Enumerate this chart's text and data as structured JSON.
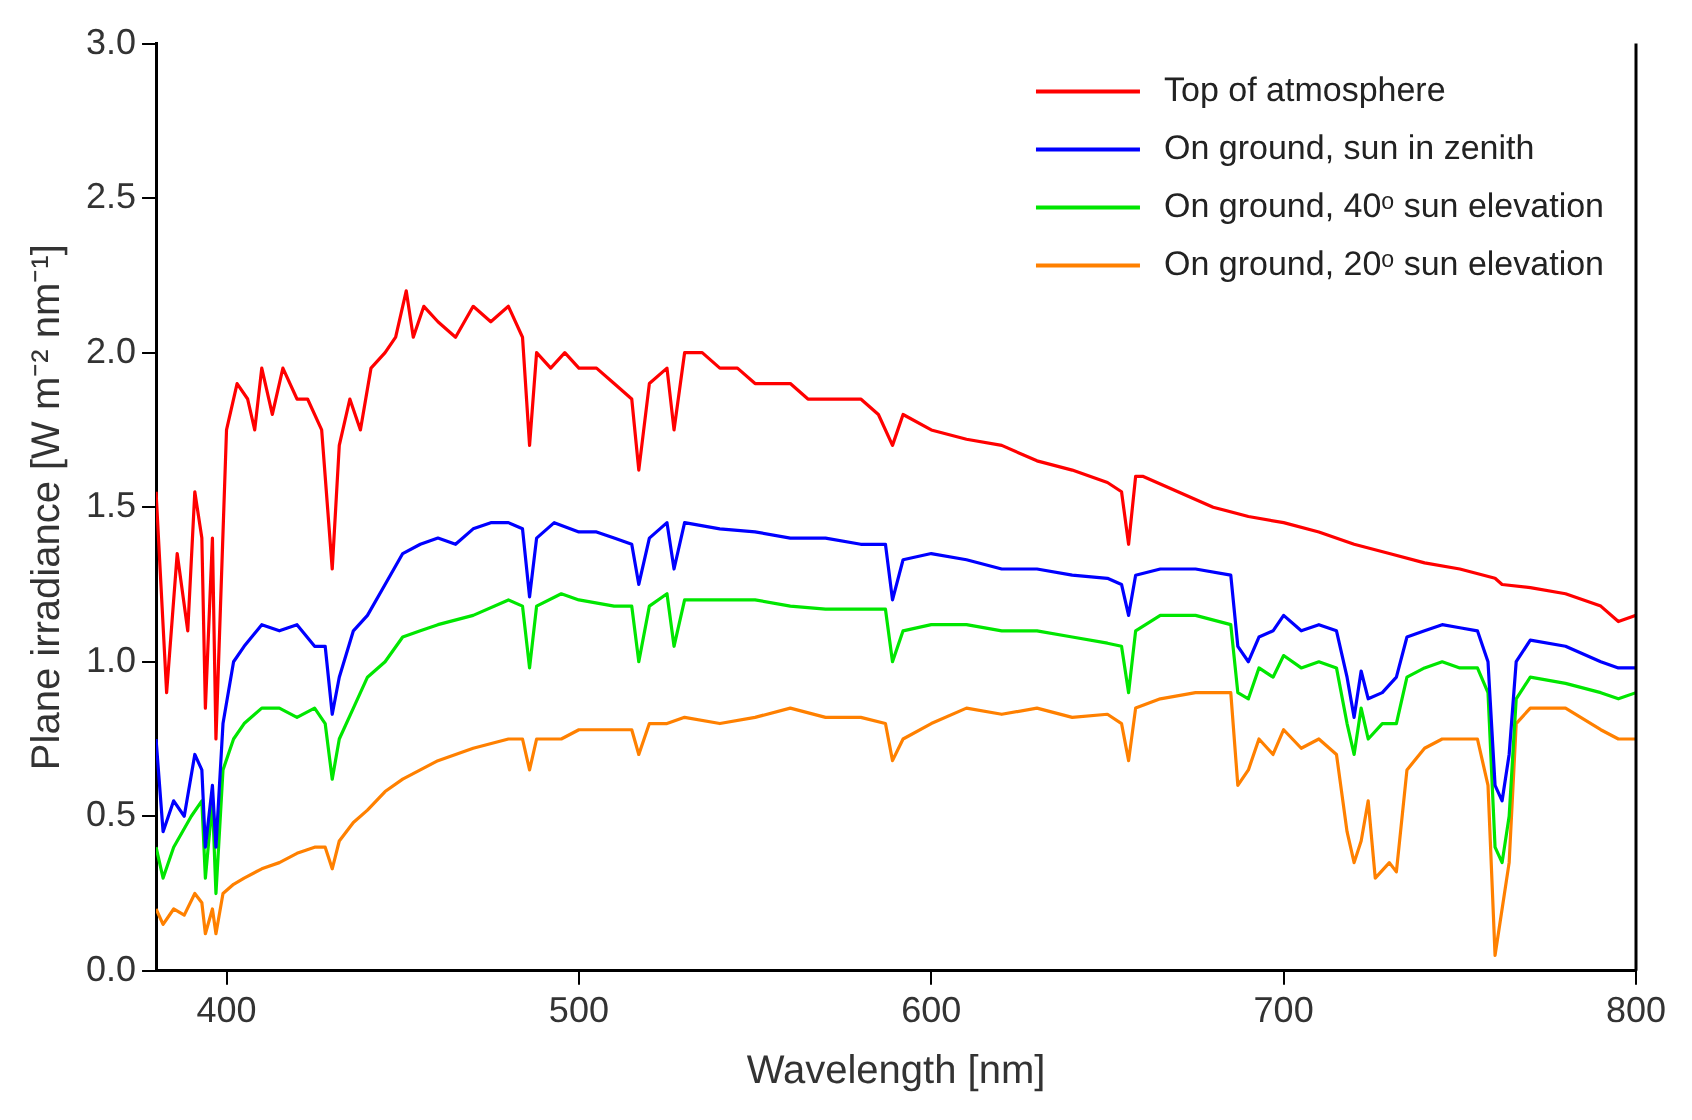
{
  "chart_data": {
    "type": "line",
    "xlabel": "Wavelength [nm]",
    "ylabel": "Plane irradiance [W m⁻² nm⁻¹]",
    "xlim": [
      380,
      800
    ],
    "xticks": [
      400,
      500,
      600,
      700,
      800
    ],
    "ylim": [
      0,
      3
    ],
    "yticks": [
      {
        "value": 0,
        "label": "0.0"
      },
      0.5,
      {
        "value": 1,
        "label": "1.0"
      },
      1.5,
      {
        "value": 2,
        "label": "2.0"
      },
      2.5,
      {
        "value": 3,
        "label": "3.0"
      }
    ],
    "grid": false,
    "legend": "top right",
    "marker": "none",
    "line_style": "solid",
    "series": [
      {
        "name": "Top of atmosphere",
        "color": "#ff0000",
        "x": [
          380,
          383,
          386,
          389,
          391,
          393,
          394,
          396,
          397,
          400,
          403,
          406,
          408,
          410,
          413,
          416,
          420,
          423,
          427,
          430,
          432,
          435,
          438,
          441,
          445,
          448,
          451,
          453,
          456,
          460,
          465,
          470,
          475,
          480,
          484,
          486,
          488,
          492,
          496,
          500,
          505,
          510,
          515,
          517,
          520,
          525,
          527,
          530,
          535,
          540,
          545,
          550,
          555,
          560,
          565,
          570,
          575,
          580,
          585,
          589,
          592,
          600,
          610,
          620,
          630,
          640,
          650,
          654,
          656,
          658,
          660,
          670,
          680,
          690,
          700,
          710,
          720,
          730,
          740,
          750,
          760,
          762,
          770,
          780,
          790,
          795,
          800
        ],
        "values": [
          1.55,
          0.9,
          1.35,
          1.1,
          1.55,
          1.4,
          0.85,
          1.4,
          0.75,
          1.75,
          1.9,
          1.85,
          1.75,
          1.95,
          1.8,
          1.95,
          1.85,
          1.85,
          1.75,
          1.3,
          1.7,
          1.85,
          1.75,
          1.95,
          2.0,
          2.05,
          2.2,
          2.05,
          2.15,
          2.1,
          2.05,
          2.15,
          2.1,
          2.15,
          2.05,
          1.7,
          2.0,
          1.95,
          2.0,
          1.95,
          1.95,
          1.9,
          1.85,
          1.62,
          1.9,
          1.95,
          1.75,
          2.0,
          2.0,
          1.95,
          1.95,
          1.9,
          1.9,
          1.9,
          1.85,
          1.85,
          1.85,
          1.85,
          1.8,
          1.7,
          1.8,
          1.75,
          1.72,
          1.7,
          1.65,
          1.62,
          1.58,
          1.55,
          1.38,
          1.6,
          1.6,
          1.55,
          1.5,
          1.47,
          1.45,
          1.42,
          1.38,
          1.35,
          1.32,
          1.3,
          1.27,
          1.25,
          1.24,
          1.22,
          1.18,
          1.13,
          1.15
        ]
      },
      {
        "name": "On ground, sun in zenith",
        "color": "#0000ff",
        "x": [
          380,
          382,
          385,
          388,
          391,
          393,
          394,
          396,
          397,
          399,
          402,
          405,
          410,
          415,
          420,
          425,
          428,
          430,
          432,
          436,
          440,
          445,
          450,
          455,
          460,
          465,
          470,
          475,
          480,
          484,
          486,
          488,
          493,
          500,
          505,
          510,
          515,
          517,
          520,
          525,
          527,
          530,
          540,
          550,
          560,
          570,
          580,
          587,
          589,
          592,
          600,
          610,
          620,
          630,
          640,
          650,
          654,
          656,
          658,
          665,
          675,
          685,
          687,
          690,
          693,
          697,
          700,
          705,
          710,
          715,
          718,
          720,
          722,
          724,
          728,
          732,
          735,
          740,
          745,
          750,
          755,
          758,
          760,
          762,
          764,
          766,
          770,
          780,
          790,
          795,
          800
        ],
        "values": [
          0.75,
          0.45,
          0.55,
          0.5,
          0.7,
          0.65,
          0.4,
          0.6,
          0.4,
          0.8,
          1.0,
          1.05,
          1.12,
          1.1,
          1.12,
          1.05,
          1.05,
          0.83,
          0.95,
          1.1,
          1.15,
          1.25,
          1.35,
          1.38,
          1.4,
          1.38,
          1.43,
          1.45,
          1.45,
          1.43,
          1.21,
          1.4,
          1.45,
          1.42,
          1.42,
          1.4,
          1.38,
          1.25,
          1.4,
          1.45,
          1.3,
          1.45,
          1.43,
          1.42,
          1.4,
          1.4,
          1.38,
          1.38,
          1.2,
          1.33,
          1.35,
          1.33,
          1.3,
          1.3,
          1.28,
          1.27,
          1.25,
          1.15,
          1.28,
          1.3,
          1.3,
          1.28,
          1.05,
          1.0,
          1.08,
          1.1,
          1.15,
          1.1,
          1.12,
          1.1,
          0.95,
          0.82,
          0.97,
          0.88,
          0.9,
          0.95,
          1.08,
          1.1,
          1.12,
          1.11,
          1.1,
          1.0,
          0.6,
          0.55,
          0.7,
          1.0,
          1.07,
          1.05,
          1.0,
          0.98,
          0.98
        ]
      },
      {
        "name": "On ground, 40ᵒ sun elevation",
        "color": "#00e600",
        "x": [
          380,
          382,
          385,
          390,
          393,
          394,
          396,
          397,
          399,
          402,
          405,
          410,
          415,
          420,
          425,
          428,
          430,
          432,
          436,
          440,
          445,
          450,
          455,
          460,
          470,
          480,
          484,
          486,
          488,
          495,
          500,
          510,
          515,
          517,
          520,
          525,
          527,
          530,
          540,
          550,
          560,
          570,
          580,
          587,
          589,
          592,
          600,
          610,
          620,
          630,
          640,
          650,
          654,
          656,
          658,
          665,
          675,
          685,
          687,
          690,
          693,
          697,
          700,
          705,
          710,
          715,
          718,
          720,
          722,
          724,
          728,
          732,
          735,
          740,
          745,
          750,
          755,
          758,
          760,
          762,
          764,
          766,
          770,
          780,
          790,
          795,
          800
        ],
        "values": [
          0.4,
          0.3,
          0.4,
          0.5,
          0.55,
          0.3,
          0.55,
          0.25,
          0.65,
          0.75,
          0.8,
          0.85,
          0.85,
          0.82,
          0.85,
          0.8,
          0.62,
          0.75,
          0.85,
          0.95,
          1.0,
          1.08,
          1.1,
          1.12,
          1.15,
          1.2,
          1.18,
          0.98,
          1.18,
          1.22,
          1.2,
          1.18,
          1.18,
          1.0,
          1.18,
          1.22,
          1.05,
          1.2,
          1.2,
          1.2,
          1.18,
          1.17,
          1.17,
          1.17,
          1.0,
          1.1,
          1.12,
          1.12,
          1.1,
          1.1,
          1.08,
          1.06,
          1.05,
          0.9,
          1.1,
          1.15,
          1.15,
          1.12,
          0.9,
          0.88,
          0.98,
          0.95,
          1.02,
          0.98,
          1.0,
          0.98,
          0.8,
          0.7,
          0.85,
          0.75,
          0.8,
          0.8,
          0.95,
          0.98,
          1.0,
          0.98,
          0.98,
          0.9,
          0.4,
          0.35,
          0.5,
          0.88,
          0.95,
          0.93,
          0.9,
          0.88,
          0.9
        ]
      },
      {
        "name": "On ground, 20ᵒ sun elevation",
        "color": "#ff8000",
        "x": [
          380,
          382,
          385,
          388,
          391,
          393,
          394,
          396,
          397,
          399,
          402,
          405,
          410,
          415,
          420,
          425,
          428,
          430,
          432,
          436,
          440,
          445,
          450,
          455,
          460,
          470,
          480,
          484,
          486,
          488,
          495,
          500,
          510,
          515,
          517,
          520,
          525,
          530,
          540,
          550,
          560,
          570,
          580,
          587,
          589,
          592,
          600,
          610,
          620,
          630,
          640,
          650,
          654,
          656,
          658,
          665,
          675,
          685,
          687,
          690,
          693,
          697,
          700,
          705,
          710,
          715,
          718,
          720,
          722,
          724,
          726,
          730,
          732,
          735,
          740,
          745,
          750,
          755,
          758,
          760,
          762,
          764,
          766,
          770,
          780,
          790,
          795,
          800
        ],
        "values": [
          0.2,
          0.15,
          0.2,
          0.18,
          0.25,
          0.22,
          0.12,
          0.2,
          0.12,
          0.25,
          0.28,
          0.3,
          0.33,
          0.35,
          0.38,
          0.4,
          0.4,
          0.33,
          0.42,
          0.48,
          0.52,
          0.58,
          0.62,
          0.65,
          0.68,
          0.72,
          0.75,
          0.75,
          0.65,
          0.75,
          0.75,
          0.78,
          0.78,
          0.78,
          0.7,
          0.8,
          0.8,
          0.82,
          0.8,
          0.82,
          0.85,
          0.82,
          0.82,
          0.8,
          0.68,
          0.75,
          0.8,
          0.85,
          0.83,
          0.85,
          0.82,
          0.83,
          0.8,
          0.68,
          0.85,
          0.88,
          0.9,
          0.9,
          0.6,
          0.65,
          0.75,
          0.7,
          0.78,
          0.72,
          0.75,
          0.7,
          0.45,
          0.35,
          0.42,
          0.55,
          0.3,
          0.35,
          0.32,
          0.65,
          0.72,
          0.75,
          0.75,
          0.75,
          0.6,
          0.05,
          0.2,
          0.35,
          0.8,
          0.85,
          0.85,
          0.78,
          0.75,
          0.75
        ]
      }
    ]
  }
}
